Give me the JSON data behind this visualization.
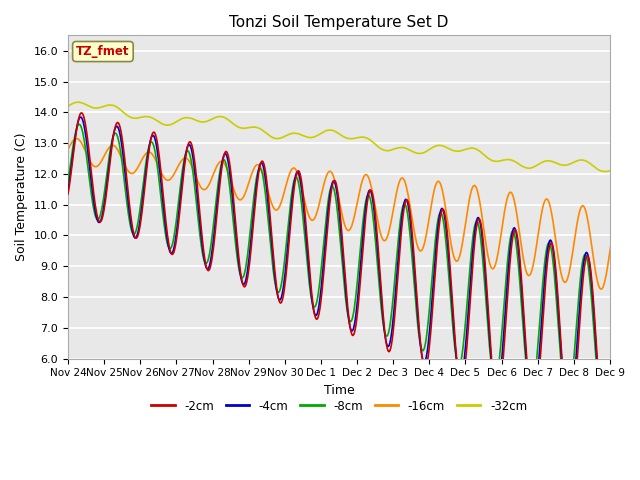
{
  "title": "Tonzi Soil Temperature Set D",
  "xlabel": "Time",
  "ylabel": "Soil Temperature (C)",
  "ylim": [
    6.0,
    16.5
  ],
  "yticks": [
    6.0,
    7.0,
    8.0,
    9.0,
    10.0,
    11.0,
    12.0,
    13.0,
    14.0,
    15.0,
    16.0
  ],
  "bg_color": "#e8e8e8",
  "series": {
    "-2cm": {
      "color": "#cc0000",
      "lw": 1.2
    },
    "-4cm": {
      "color": "#0000cc",
      "lw": 1.2
    },
    "-8cm": {
      "color": "#00aa00",
      "lw": 1.2
    },
    "-16cm": {
      "color": "#ff8800",
      "lw": 1.2
    },
    "-32cm": {
      "color": "#cccc00",
      "lw": 1.2
    }
  },
  "annotation_text": "TZ_fmet",
  "annotation_color": "#cc0000",
  "annotation_bg": "#ffffcc",
  "annotation_border": "#888844",
  "n_days": 16,
  "xtick_labels": [
    "Nov 24",
    "Nov 25",
    "Nov 26",
    "Nov 27",
    "Nov 28",
    "Nov 29",
    "Nov 30",
    "Dec 1",
    "Dec 2",
    "Dec 3",
    "Dec 4",
    "Dec 5",
    "Dec 6",
    "Dec 7",
    "Dec 8",
    "Dec 9"
  ],
  "samples_per_day": 48
}
